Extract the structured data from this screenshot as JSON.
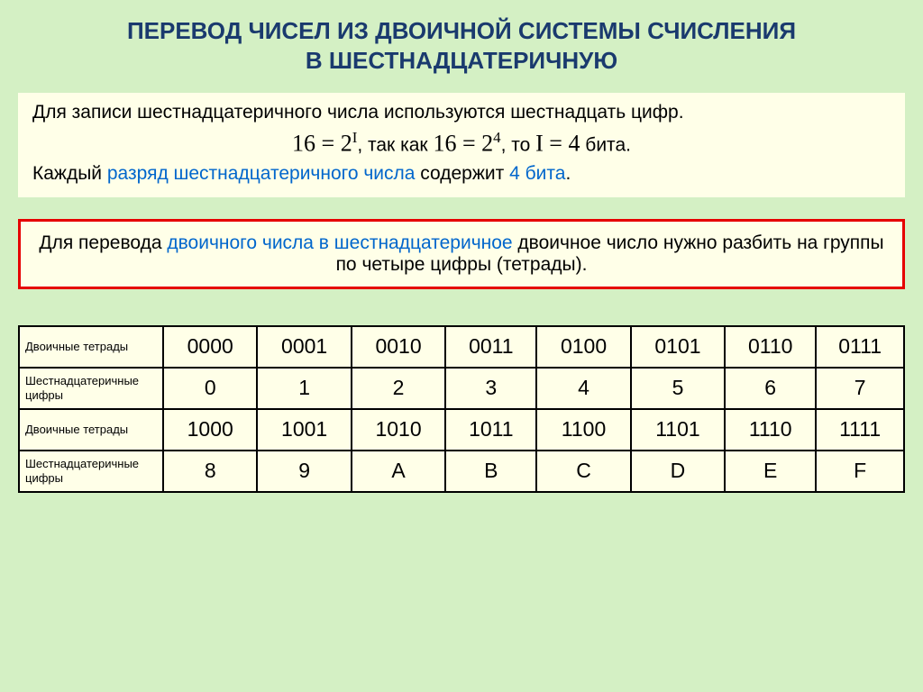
{
  "title_line1": "ПЕРЕВОД ЧИСЕЛ ИЗ ДВОИЧНОЙ СИСТЕМЫ СЧИСЛЕНИЯ",
  "title_line2": "В ШЕСТНАДЦАТЕРИЧНУЮ",
  "box1": {
    "line1": "Для записи шестнадцатеричного числа используются шестнадцать цифр.",
    "formula_a": "16 = 2",
    "formula_a_sup": "I",
    "formula_conn1": ",  так как  ",
    "formula_b": "16 = 2",
    "formula_b_sup": "4",
    "formula_conn2": ",  то  ",
    "formula_c": "I = 4",
    "formula_tail": " бита.",
    "line3_a": "Каждый ",
    "line3_b": "разряд шестнадцатеричного числа",
    "line3_c": " содержит ",
    "line3_d": "4 бита",
    "line3_e": "."
  },
  "box2": {
    "a": "Для перевода ",
    "b": "двоичного числа в шестнадцатеричное",
    "c": " двоичное число нужно разбить на группы по четыре цифры (тетрады)."
  },
  "table": {
    "row_labels": [
      "Двоичные тетрады",
      "Шестнадцатеричные цифры",
      "Двоичные тетрады",
      "Шестнадцатеричные цифры"
    ],
    "r0": [
      "0000",
      "0001",
      "0010",
      "0011",
      "0100",
      "0101",
      "0110",
      "0111"
    ],
    "r1": [
      "0",
      "1",
      "2",
      "3",
      "4",
      "5",
      "6",
      "7"
    ],
    "r2": [
      "1000",
      "1001",
      "1010",
      "1011",
      "1100",
      "1101",
      "1110",
      "1111"
    ],
    "r3": [
      "8",
      "9",
      "A",
      "B",
      "C",
      "D",
      "E",
      "F"
    ]
  }
}
